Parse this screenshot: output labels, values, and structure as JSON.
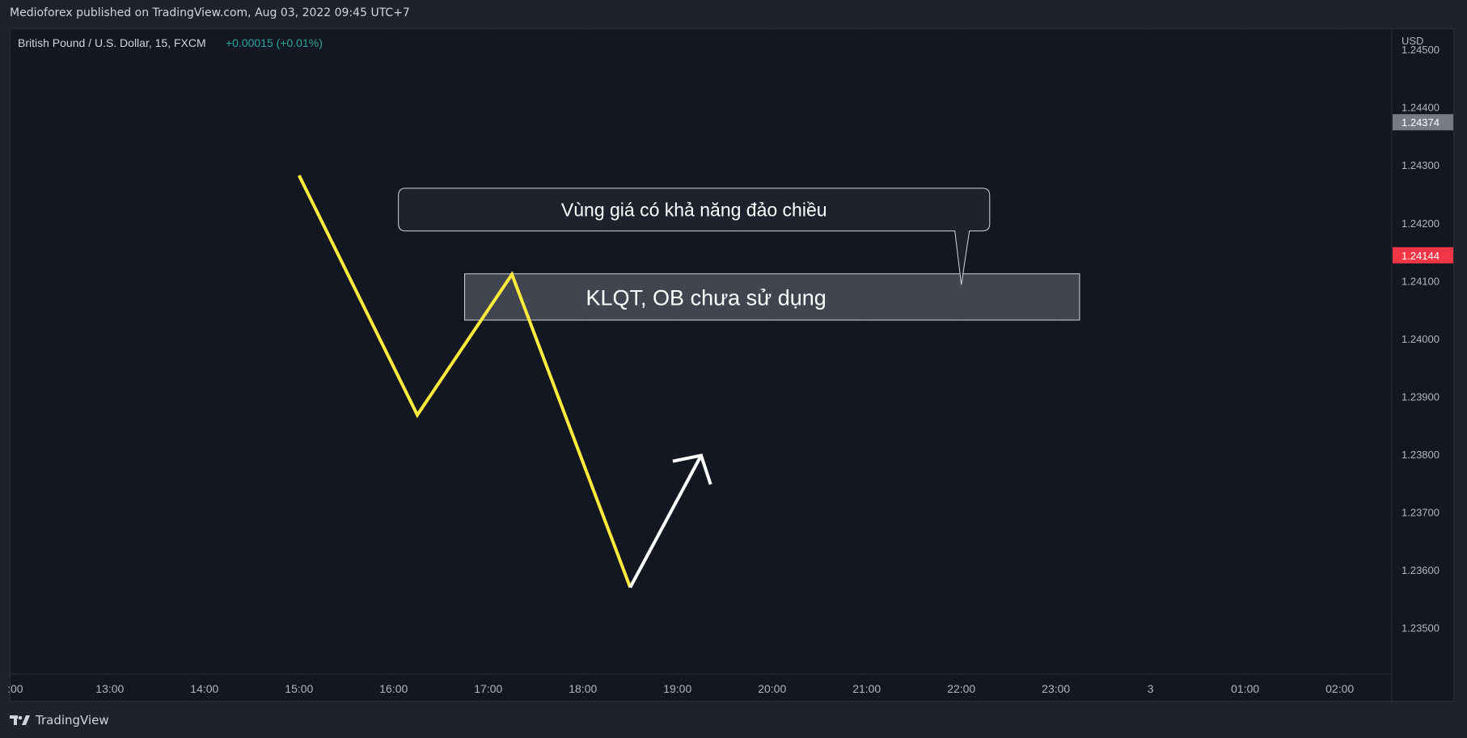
{
  "header": {
    "publish_line": "Medioforex published on TradingView.com, Aug 03, 2022 09:45 UTC+7"
  },
  "footer": {
    "brand": "TradingView"
  },
  "chart_data": {
    "type": "line",
    "symbol_info": "British Pound / U.S. Dollar, 15, FXCM",
    "change_text": "+0.00015 (+0.01%)",
    "currency": "USD",
    "ylim": [
      1.2342,
      1.24535
    ],
    "y_ticks": [
      {
        "value": 1.245,
        "label": "1.24500"
      },
      {
        "value": 1.244,
        "label": "1.24400"
      },
      {
        "value": 1.243,
        "label": "1.24300"
      },
      {
        "value": 1.242,
        "label": "1.24200"
      },
      {
        "value": 1.241,
        "label": "1.24100"
      },
      {
        "value": 1.24,
        "label": "1.24000"
      },
      {
        "value": 1.239,
        "label": "1.23900"
      },
      {
        "value": 1.238,
        "label": "1.23800"
      },
      {
        "value": 1.237,
        "label": "1.23700"
      },
      {
        "value": 1.236,
        "label": "1.23600"
      },
      {
        "value": 1.235,
        "label": "1.23500"
      }
    ],
    "xlim": [
      11.95,
      26.55
    ],
    "x_ticks": [
      {
        "value": 12,
        "label": ":00"
      },
      {
        "value": 13,
        "label": "13:00"
      },
      {
        "value": 14,
        "label": "14:00"
      },
      {
        "value": 15,
        "label": "15:00"
      },
      {
        "value": 16,
        "label": "16:00"
      },
      {
        "value": 17,
        "label": "17:00"
      },
      {
        "value": 18,
        "label": "18:00"
      },
      {
        "value": 19,
        "label": "19:00"
      },
      {
        "value": 20,
        "label": "20:00"
      },
      {
        "value": 21,
        "label": "21:00"
      },
      {
        "value": 22,
        "label": "22:00"
      },
      {
        "value": 23,
        "label": "23:00"
      },
      {
        "value": 24,
        "label": "3"
      },
      {
        "value": 25,
        "label": "01:00"
      },
      {
        "value": 26,
        "label": "02:00"
      }
    ],
    "price_badges": [
      {
        "value": 1.24374,
        "label": "1.24374",
        "color": "#787b86"
      },
      {
        "value": 1.24144,
        "label": "1.24144",
        "color": "#f23645"
      }
    ],
    "series": [
      {
        "name": "zigzag",
        "color": "#ffeb3b",
        "points": [
          [
            15.0,
            1.24282
          ],
          [
            16.25,
            1.23868
          ],
          [
            17.25,
            1.24111
          ],
          [
            18.5,
            1.2357
          ]
        ]
      },
      {
        "name": "projection-arrow",
        "color": "#ffffff",
        "points": [
          [
            18.5,
            1.2357
          ],
          [
            19.25,
            1.23798
          ]
        ],
        "arrowhead": [
          [
            18.95,
            1.23788
          ],
          [
            19.25,
            1.23798
          ],
          [
            19.35,
            1.23748
          ]
        ]
      }
    ],
    "zone": {
      "x_from": 16.75,
      "x_to": 23.25,
      "y_from": 1.24032,
      "y_to": 1.24112,
      "fill": "#4a4e57",
      "label": "KLQT, OB chưa sử dụng"
    },
    "callout": {
      "text": "Vùng giá có khả năng đảo chiều",
      "box_x_from": 16.05,
      "box_x_to": 22.3,
      "box_y_from": 1.24186,
      "box_y_to": 1.2426,
      "pointer_x": 22.0,
      "pointer_y": 1.24093
    }
  }
}
